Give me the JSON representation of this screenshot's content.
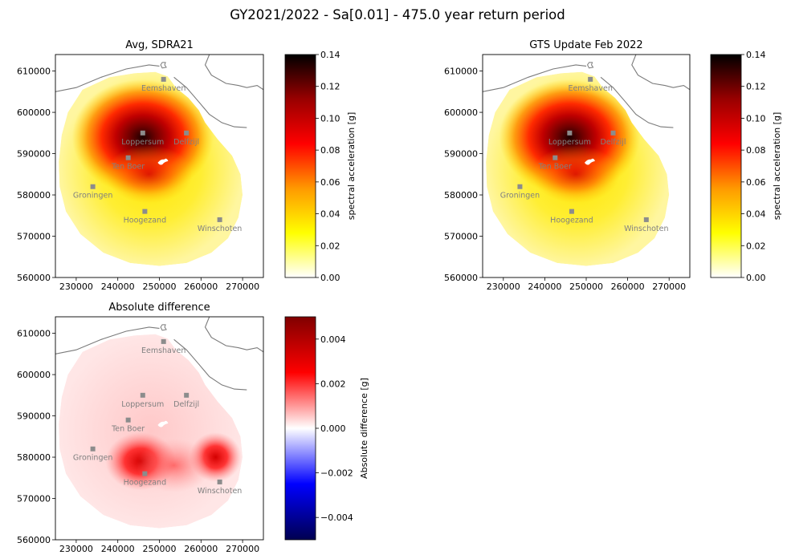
{
  "figure": {
    "suptitle": "GY2021/2022 - Sa[0.01] - 475.0 year return period"
  },
  "colors": {
    "hot_stops": [
      "#ffffff",
      "#ffff00",
      "#ff9900",
      "#ff0000",
      "#990000",
      "#000000"
    ],
    "seismic_stops": [
      "#000050",
      "#0000ff",
      "#ffffff",
      "#ff0000",
      "#800000"
    ],
    "coastline": "#7a7a7a",
    "city_marker": "#8c8c8c",
    "city_label": "#808080"
  },
  "chart_data": [
    {
      "type": "heatmap",
      "title": "Avg, SDRA21",
      "xlim": [
        225000,
        275000
      ],
      "ylim": [
        560000,
        614000
      ],
      "xticks": [
        "230000",
        "240000",
        "250000",
        "260000",
        "270000"
      ],
      "yticks": [
        "560000",
        "570000",
        "580000",
        "590000",
        "600000",
        "610000"
      ],
      "colorbar": {
        "label": "spectral acceleration [g]",
        "colormap": "hot_r",
        "range": [
          0.0,
          0.14
        ],
        "ticks": [
          "0.00",
          "0.02",
          "0.04",
          "0.06",
          "0.08",
          "0.10",
          "0.12",
          "0.14"
        ]
      }
    },
    {
      "type": "heatmap",
      "title": "GTS Update Feb 2022",
      "xlim": [
        225000,
        275000
      ],
      "ylim": [
        560000,
        614000
      ],
      "xticks": [
        "230000",
        "240000",
        "250000",
        "260000",
        "270000"
      ],
      "yticks": [
        "560000",
        "570000",
        "580000",
        "590000",
        "600000",
        "610000"
      ],
      "colorbar": {
        "label": "spectral acceleration [g]",
        "colormap": "hot_r",
        "range": [
          0.0,
          0.14
        ],
        "ticks": [
          "0.00",
          "0.02",
          "0.04",
          "0.06",
          "0.08",
          "0.10",
          "0.12",
          "0.14"
        ]
      }
    },
    {
      "type": "heatmap",
      "title": "Absolute difference",
      "xlim": [
        225000,
        275000
      ],
      "ylim": [
        560000,
        614000
      ],
      "xticks": [
        "230000",
        "240000",
        "250000",
        "260000",
        "270000"
      ],
      "yticks": [
        "560000",
        "570000",
        "580000",
        "590000",
        "600000",
        "610000"
      ],
      "colorbar": {
        "label": "Absolute difference [g]",
        "colormap": "seismic",
        "range": [
          -0.005,
          0.005
        ],
        "ticks": [
          "−0.004",
          "−0.002",
          "0.000",
          "0.002",
          "0.004"
        ],
        "tick_values": [
          -0.004,
          -0.002,
          0.0,
          0.002,
          0.004
        ]
      }
    }
  ],
  "cities": [
    {
      "name": "Eemshaven",
      "x": 251000,
      "y": 608000
    },
    {
      "name": "Loppersum",
      "x": 246000,
      "y": 595000
    },
    {
      "name": "Delfzijl",
      "x": 256500,
      "y": 595000
    },
    {
      "name": "Ten Boer",
      "x": 242500,
      "y": 589000
    },
    {
      "name": "Groningen",
      "x": 234000,
      "y": 582000
    },
    {
      "name": "Hoogezand",
      "x": 246500,
      "y": 576000
    },
    {
      "name": "Winschoten",
      "x": 264500,
      "y": 574000
    }
  ]
}
